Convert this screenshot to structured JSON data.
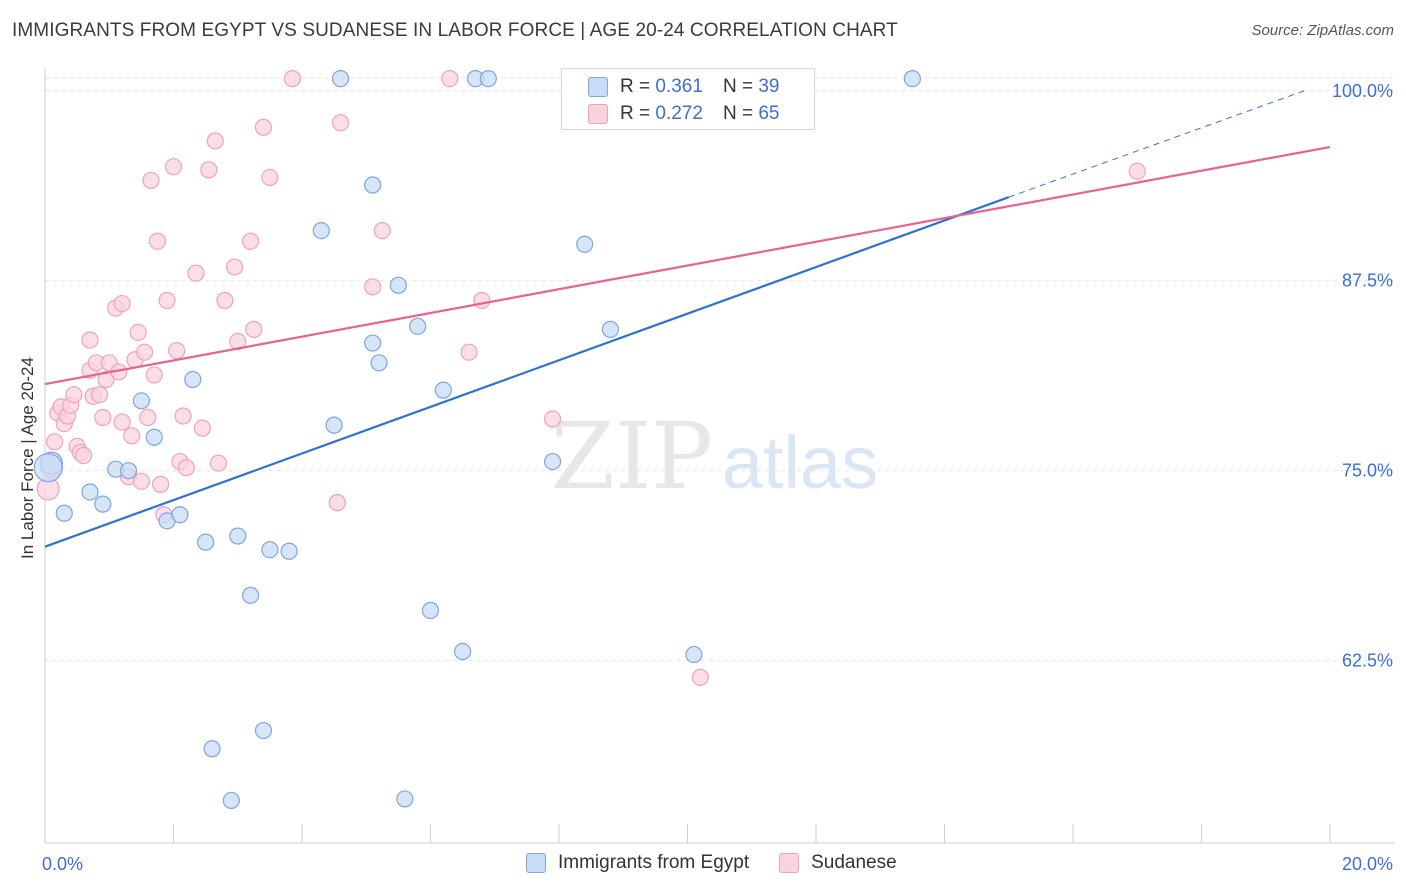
{
  "title": "IMMIGRANTS FROM EGYPT VS SUDANESE IN LABOR FORCE | AGE 20-24 CORRELATION CHART",
  "source": "Source: ZipAtlas.com",
  "colors": {
    "egypt_fill": "#c8dcf5",
    "egypt_stroke": "#7ea6e0",
    "egypt_line": "#2f72d4",
    "sudanese_fill": "#fbd3df",
    "sudanese_stroke": "#f0a2bb",
    "sudanese_line": "#e8628e",
    "tick_label": "#3c6fd1"
  },
  "legend_top": {
    "rows": [
      {
        "r_label": "R =",
        "r_value": "0.361",
        "n_label": "N =",
        "n_value": "39"
      },
      {
        "r_label": "R =",
        "r_value": "0.272",
        "n_label": "N =",
        "n_value": "65"
      }
    ]
  },
  "legend_bottom": [
    "Immigrants from Egypt",
    "Sudanese"
  ],
  "watermark": {
    "zip": "ZIP",
    "atlas": "atlas"
  },
  "chart_data": {
    "type": "scatter",
    "title": "IMMIGRANTS FROM EGYPT VS SUDANESE IN LABOR FORCE | AGE 20-24 CORRELATION CHART",
    "xlabel": "",
    "ylabel": "In Labor Force | Age 20-24",
    "xlim": [
      0,
      20
    ],
    "ylim": [
      50.5,
      101.5
    ],
    "x_tick_labels": [
      {
        "value": 0,
        "label": "0.0%"
      },
      {
        "value": 20,
        "label": "20.0%"
      }
    ],
    "y_tick_labels": [
      {
        "value": 100,
        "label": "100.0%"
      },
      {
        "value": 87.5,
        "label": "87.5%"
      },
      {
        "value": 75,
        "label": "75.0%"
      },
      {
        "value": 62.5,
        "label": "62.5%"
      }
    ],
    "series": [
      {
        "name": "Immigrants from Egypt",
        "r": 0.361,
        "n": 39,
        "trend": {
          "x0": 0,
          "y0": 70.0,
          "x1": 15.0,
          "y1": 93.0,
          "dash_x1": 19.6,
          "dash_y1": 100.0
        },
        "points": [
          [
            0.1,
            75.5
          ],
          [
            0.3,
            72.2
          ],
          [
            0.7,
            73.6
          ],
          [
            0.9,
            72.8
          ],
          [
            1.1,
            75.1
          ],
          [
            1.3,
            75.0
          ],
          [
            1.5,
            79.6
          ],
          [
            1.7,
            77.2
          ],
          [
            1.9,
            71.7
          ],
          [
            2.1,
            72.1
          ],
          [
            2.3,
            81.0
          ],
          [
            2.5,
            70.3
          ],
          [
            2.6,
            56.7
          ],
          [
            2.9,
            53.3
          ],
          [
            3.0,
            70.7
          ],
          [
            3.2,
            66.8
          ],
          [
            3.4,
            57.9
          ],
          [
            3.5,
            69.8
          ],
          [
            3.8,
            69.7
          ],
          [
            4.3,
            90.8
          ],
          [
            4.5,
            78.0
          ],
          [
            4.6,
            100.8
          ],
          [
            5.1,
            83.4
          ],
          [
            5.1,
            93.8
          ],
          [
            5.2,
            82.1
          ],
          [
            5.5,
            87.2
          ],
          [
            5.6,
            53.4
          ],
          [
            5.8,
            84.5
          ],
          [
            6.0,
            65.8
          ],
          [
            6.2,
            80.3
          ],
          [
            6.5,
            63.1
          ],
          [
            6.7,
            100.8
          ],
          [
            6.9,
            100.8
          ],
          [
            7.9,
            75.6
          ],
          [
            8.4,
            89.9
          ],
          [
            8.8,
            84.3
          ],
          [
            10.1,
            62.9
          ],
          [
            13.5,
            100.8
          ],
          [
            0.05,
            75.2
          ]
        ]
      },
      {
        "name": "Sudanese",
        "r": 0.272,
        "n": 65,
        "trend": {
          "x0": 0,
          "y0": 80.7,
          "x1": 20,
          "y1": 96.3
        },
        "points": [
          [
            0.05,
            73.8
          ],
          [
            0.1,
            75.3
          ],
          [
            0.15,
            76.9
          ],
          [
            0.2,
            78.8
          ],
          [
            0.25,
            79.2
          ],
          [
            0.3,
            78.1
          ],
          [
            0.35,
            78.6
          ],
          [
            0.4,
            79.3
          ],
          [
            0.45,
            80.0
          ],
          [
            0.5,
            76.6
          ],
          [
            0.55,
            76.2
          ],
          [
            0.6,
            76.0
          ],
          [
            0.7,
            81.6
          ],
          [
            0.7,
            83.6
          ],
          [
            0.75,
            79.9
          ],
          [
            0.8,
            82.1
          ],
          [
            0.85,
            80.0
          ],
          [
            0.9,
            78.5
          ],
          [
            0.95,
            81.0
          ],
          [
            1.0,
            82.1
          ],
          [
            1.1,
            85.7
          ],
          [
            1.15,
            81.5
          ],
          [
            1.2,
            78.2
          ],
          [
            1.2,
            86.0
          ],
          [
            1.3,
            74.6
          ],
          [
            1.35,
            77.3
          ],
          [
            1.4,
            82.3
          ],
          [
            1.45,
            84.1
          ],
          [
            1.5,
            74.3
          ],
          [
            1.55,
            82.8
          ],
          [
            1.6,
            78.5
          ],
          [
            1.65,
            94.1
          ],
          [
            1.7,
            81.3
          ],
          [
            1.75,
            90.1
          ],
          [
            1.8,
            74.1
          ],
          [
            1.85,
            72.1
          ],
          [
            1.9,
            86.2
          ],
          [
            2.0,
            95.0
          ],
          [
            2.05,
            82.9
          ],
          [
            2.1,
            75.6
          ],
          [
            2.15,
            78.6
          ],
          [
            2.2,
            75.2
          ],
          [
            2.35,
            88.0
          ],
          [
            2.45,
            77.8
          ],
          [
            2.55,
            94.8
          ],
          [
            2.65,
            96.7
          ],
          [
            2.7,
            75.5
          ],
          [
            2.8,
            86.2
          ],
          [
            2.95,
            88.4
          ],
          [
            3.0,
            83.5
          ],
          [
            3.2,
            90.1
          ],
          [
            3.25,
            84.3
          ],
          [
            3.4,
            97.6
          ],
          [
            3.5,
            94.3
          ],
          [
            3.85,
            100.8
          ],
          [
            4.55,
            72.9
          ],
          [
            4.6,
            97.9
          ],
          [
            5.1,
            87.1
          ],
          [
            5.25,
            90.8
          ],
          [
            6.3,
            100.8
          ],
          [
            6.6,
            82.8
          ],
          [
            6.8,
            86.2
          ],
          [
            7.9,
            78.4
          ],
          [
            10.2,
            61.4
          ],
          [
            17.0,
            94.7
          ]
        ]
      }
    ]
  }
}
